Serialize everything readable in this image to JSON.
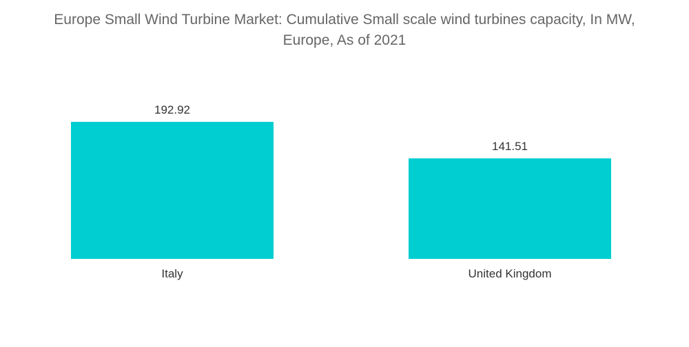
{
  "chart_data": {
    "type": "bar",
    "title_line1": "Europe Small Wind Turbine Market: Cumulative Small scale wind turbines capacity, In MW,",
    "title_line2": "Europe, As of 2021",
    "categories": [
      "Italy",
      "United Kingdom"
    ],
    "values": [
      192.92,
      141.51
    ],
    "value_labels": [
      "192.92",
      "141.51"
    ],
    "xlabel": "",
    "ylabel": "",
    "ylim": [
      0,
      192.92
    ],
    "grid": false,
    "legend": "none",
    "bar_color": "#00CED1"
  }
}
